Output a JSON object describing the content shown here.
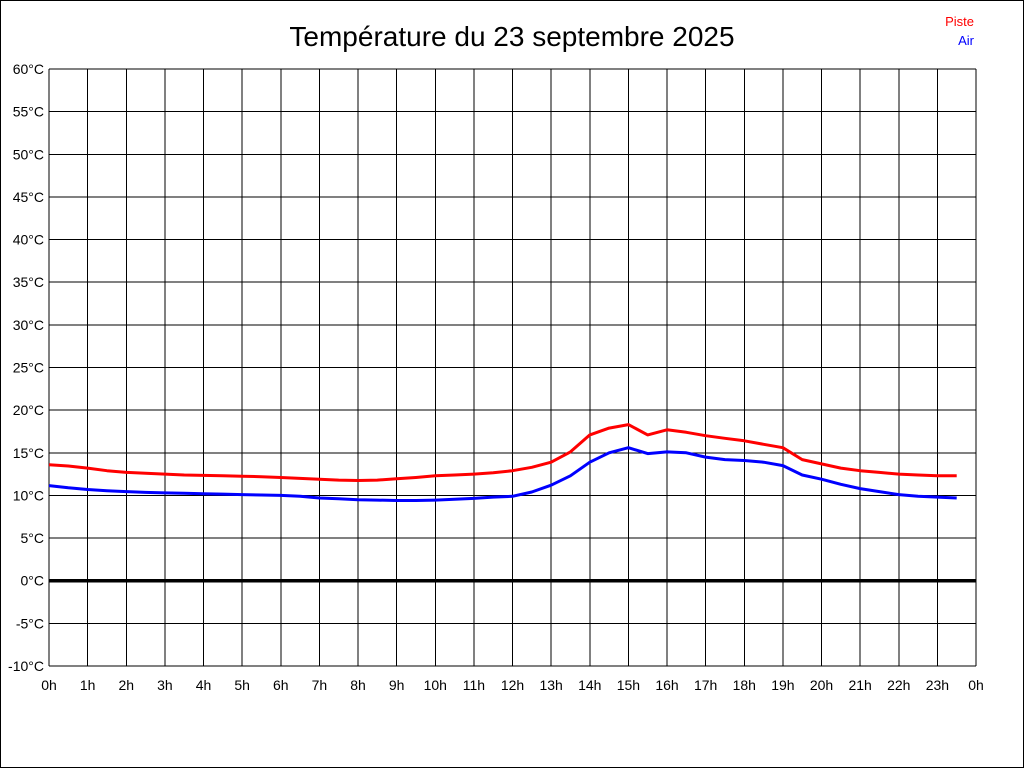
{
  "chart_data": {
    "type": "line",
    "title": "Température du 23 septembre 2025",
    "xlabel": "",
    "ylabel": "",
    "ylim": [
      -10,
      60
    ],
    "y_tick_step": 5,
    "xlim_hours": [
      0,
      24
    ],
    "grid": true,
    "zero_line": {
      "value": 0,
      "color": "#000000"
    },
    "legend_position": "top-right",
    "y_tick_labels": [
      "60°C",
      "55°C",
      "50°C",
      "45°C",
      "40°C",
      "35°C",
      "30°C",
      "25°C",
      "20°C",
      "15°C",
      "10°C",
      "5°C",
      "0°C",
      "-5°C",
      "-10°C"
    ],
    "x_tick_labels": [
      "0h",
      "1h",
      "2h",
      "3h",
      "4h",
      "5h",
      "6h",
      "7h",
      "8h",
      "9h",
      "10h",
      "11h",
      "12h",
      "13h",
      "14h",
      "15h",
      "16h",
      "17h",
      "18h",
      "19h",
      "20h",
      "21h",
      "22h",
      "23h",
      "0h"
    ],
    "x": [
      0,
      0.5,
      1,
      1.5,
      2,
      2.5,
      3,
      3.5,
      4,
      4.5,
      5,
      5.5,
      6,
      6.5,
      7,
      7.5,
      8,
      8.5,
      9,
      9.5,
      10,
      10.5,
      11,
      11.5,
      12,
      12.5,
      13,
      13.5,
      14,
      14.5,
      15,
      15.5,
      16,
      16.5,
      17,
      17.5,
      18,
      18.5,
      19,
      19.5,
      20,
      20.5,
      21,
      21.5,
      22,
      22.5,
      23,
      23.5
    ],
    "series": [
      {
        "name": "Piste",
        "color": "#ff0000",
        "values": [
          13.6,
          13.45,
          13.2,
          12.9,
          12.7,
          12.6,
          12.5,
          12.4,
          12.35,
          12.3,
          12.25,
          12.2,
          12.1,
          12.0,
          11.9,
          11.8,
          11.75,
          11.8,
          11.95,
          12.1,
          12.3,
          12.4,
          12.5,
          12.65,
          12.9,
          13.3,
          13.9,
          15.1,
          17.1,
          17.9,
          18.3,
          17.1,
          17.7,
          17.4,
          17.0,
          16.7,
          16.4,
          16.0,
          15.6,
          14.2,
          13.7,
          13.2,
          12.9,
          12.7,
          12.5,
          12.4,
          12.3,
          12.3
        ]
      },
      {
        "name": "Air",
        "color": "#0000ff",
        "values": [
          11.15,
          10.9,
          10.7,
          10.55,
          10.45,
          10.35,
          10.3,
          10.25,
          10.2,
          10.15,
          10.1,
          10.05,
          10.0,
          9.9,
          9.7,
          9.6,
          9.5,
          9.45,
          9.4,
          9.4,
          9.45,
          9.55,
          9.65,
          9.8,
          9.9,
          10.4,
          11.2,
          12.3,
          13.9,
          15.0,
          15.6,
          14.9,
          15.1,
          15.0,
          14.5,
          14.2,
          14.1,
          13.9,
          13.5,
          12.4,
          11.9,
          11.3,
          10.8,
          10.45,
          10.1,
          9.9,
          9.8,
          9.7
        ]
      }
    ]
  }
}
